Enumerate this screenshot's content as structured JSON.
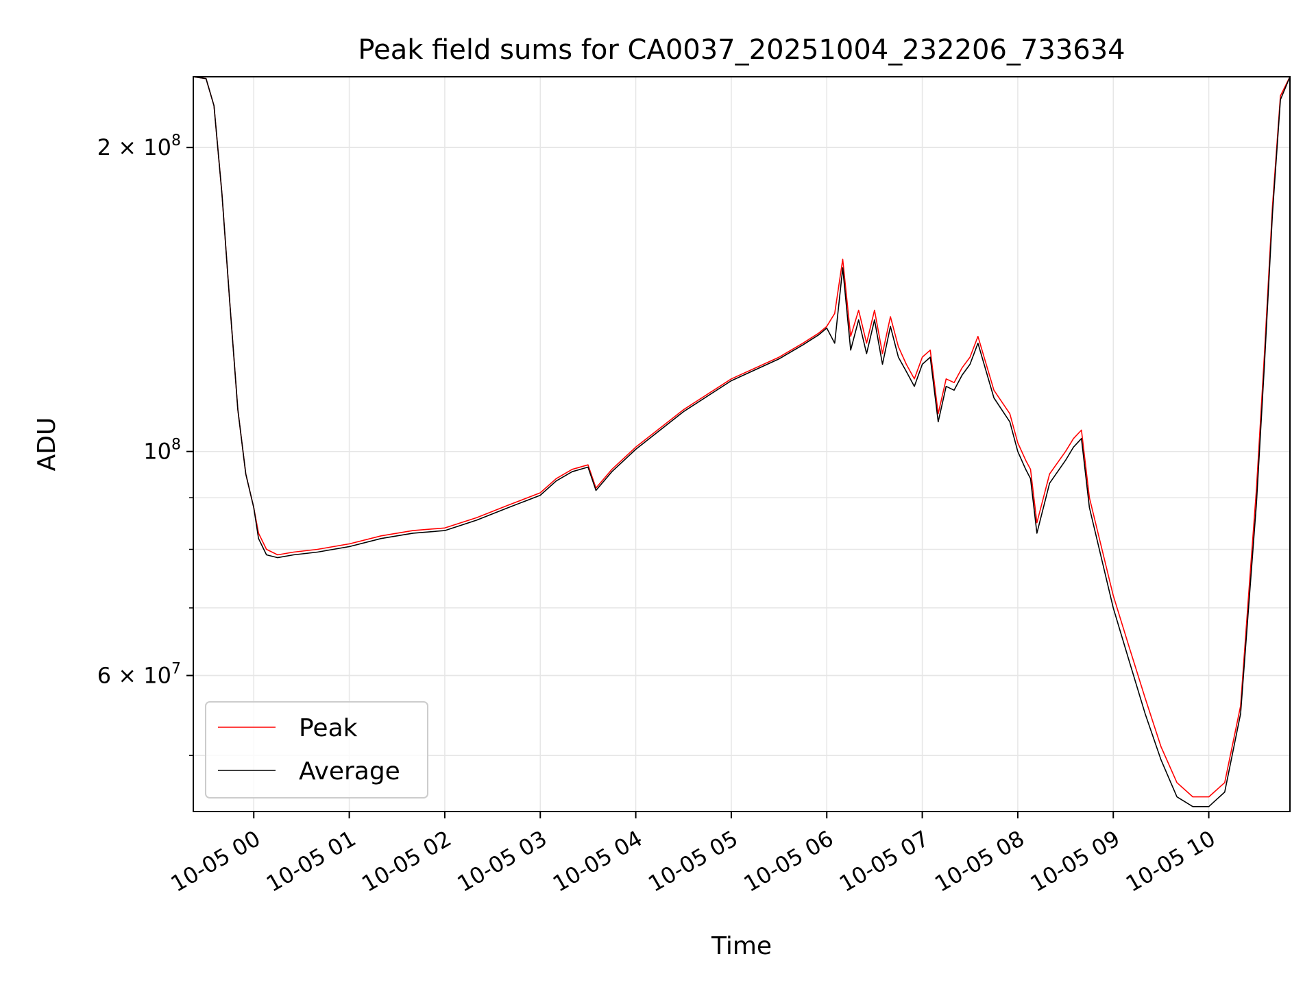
{
  "chart_data": {
    "type": "line",
    "title": "Peak field sums for CA0037_20251004_232206_733634",
    "xlabel": "Time",
    "ylabel": "ADU",
    "yscale": "log",
    "grid": true,
    "legend_position": "lower-left",
    "xlim": [
      "2025-10-04 23:22",
      "2025-10-05 10:51"
    ],
    "ylim": [
      44000000,
      235000000
    ],
    "x_ticks": [
      "10-05 00",
      "10-05 01",
      "10-05 02",
      "10-05 03",
      "10-05 04",
      "10-05 05",
      "10-05 06",
      "10-05 07",
      "10-05 08",
      "10-05 09",
      "10-05 10"
    ],
    "y_major_ticks": [
      {
        "value": 60000000,
        "base": "6 × 10",
        "exp": "7"
      },
      {
        "value": 100000000,
        "base": "10",
        "exp": "8"
      },
      {
        "value": 200000000,
        "base": "2 × 10",
        "exp": "8"
      }
    ],
    "y_minor_tick_values": [
      50000000,
      60000000,
      70000000,
      80000000,
      90000000,
      200000000
    ],
    "series": [
      {
        "name": "Peak",
        "color": "#ff0000",
        "x": [
          "2025-10-04 23:22",
          "2025-10-04 23:30",
          "2025-10-04 23:35",
          "2025-10-04 23:40",
          "2025-10-04 23:45",
          "2025-10-04 23:50",
          "2025-10-04 23:55",
          "2025-10-05 00:00",
          "2025-10-05 00:03",
          "2025-10-05 00:08",
          "2025-10-05 00:15",
          "2025-10-05 00:25",
          "2025-10-05 00:40",
          "2025-10-05 01:00",
          "2025-10-05 01:20",
          "2025-10-05 01:40",
          "2025-10-05 02:00",
          "2025-10-05 02:20",
          "2025-10-05 02:40",
          "2025-10-05 03:00",
          "2025-10-05 03:10",
          "2025-10-05 03:20",
          "2025-10-05 03:30",
          "2025-10-05 03:35",
          "2025-10-05 03:45",
          "2025-10-05 04:00",
          "2025-10-05 04:30",
          "2025-10-05 05:00",
          "2025-10-05 05:30",
          "2025-10-05 05:45",
          "2025-10-05 05:55",
          "2025-10-05 06:00",
          "2025-10-05 06:05",
          "2025-10-05 06:10",
          "2025-10-05 06:15",
          "2025-10-05 06:20",
          "2025-10-05 06:25",
          "2025-10-05 06:30",
          "2025-10-05 06:35",
          "2025-10-05 06:40",
          "2025-10-05 06:45",
          "2025-10-05 06:50",
          "2025-10-05 06:55",
          "2025-10-05 07:00",
          "2025-10-05 07:05",
          "2025-10-05 07:10",
          "2025-10-05 07:15",
          "2025-10-05 07:20",
          "2025-10-05 07:25",
          "2025-10-05 07:30",
          "2025-10-05 07:35",
          "2025-10-05 07:45",
          "2025-10-05 07:55",
          "2025-10-05 08:00",
          "2025-10-05 08:05",
          "2025-10-05 08:08",
          "2025-10-05 08:12",
          "2025-10-05 08:20",
          "2025-10-05 08:30",
          "2025-10-05 08:35",
          "2025-10-05 08:40",
          "2025-10-05 08:45",
          "2025-10-05 09:00",
          "2025-10-05 09:10",
          "2025-10-05 09:20",
          "2025-10-05 09:30",
          "2025-10-05 09:40",
          "2025-10-05 09:50",
          "2025-10-05 10:00",
          "2025-10-05 10:10",
          "2025-10-05 10:20",
          "2025-10-05 10:25",
          "2025-10-05 10:30",
          "2025-10-05 10:35",
          "2025-10-05 10:40",
          "2025-10-05 10:45",
          "2025-10-05 10:51"
        ],
        "y": [
          235000000,
          234000000,
          220000000,
          180000000,
          140000000,
          110000000,
          95000000,
          88000000,
          83000000,
          80000000,
          79000000,
          79500000,
          80000000,
          81000000,
          82500000,
          83500000,
          84000000,
          86000000,
          88500000,
          91000000,
          94000000,
          96000000,
          97000000,
          92000000,
          96000000,
          101000000,
          110000000,
          118000000,
          124000000,
          128000000,
          131000000,
          133000000,
          137000000,
          155000000,
          130000000,
          138000000,
          128000000,
          138000000,
          125000000,
          136000000,
          127000000,
          122000000,
          118000000,
          124000000,
          126000000,
          109000000,
          118000000,
          117000000,
          121000000,
          124000000,
          130000000,
          115000000,
          109000000,
          102000000,
          98000000,
          96000000,
          85000000,
          95000000,
          100000000,
          103000000,
          105000000,
          90000000,
          72000000,
          64000000,
          57000000,
          51000000,
          47000000,
          45500000,
          45500000,
          47000000,
          56000000,
          72000000,
          92000000,
          125000000,
          175000000,
          225000000,
          235000000
        ]
      },
      {
        "name": "Average",
        "color": "#000000",
        "x": [
          "2025-10-04 23:22",
          "2025-10-04 23:30",
          "2025-10-04 23:35",
          "2025-10-04 23:40",
          "2025-10-04 23:45",
          "2025-10-04 23:50",
          "2025-10-04 23:55",
          "2025-10-05 00:00",
          "2025-10-05 00:03",
          "2025-10-05 00:08",
          "2025-10-05 00:15",
          "2025-10-05 00:25",
          "2025-10-05 00:40",
          "2025-10-05 01:00",
          "2025-10-05 01:20",
          "2025-10-05 01:40",
          "2025-10-05 02:00",
          "2025-10-05 02:20",
          "2025-10-05 02:40",
          "2025-10-05 03:00",
          "2025-10-05 03:10",
          "2025-10-05 03:20",
          "2025-10-05 03:30",
          "2025-10-05 03:35",
          "2025-10-05 03:45",
          "2025-10-05 04:00",
          "2025-10-05 04:30",
          "2025-10-05 05:00",
          "2025-10-05 05:30",
          "2025-10-05 05:45",
          "2025-10-05 05:55",
          "2025-10-05 06:00",
          "2025-10-05 06:05",
          "2025-10-05 06:10",
          "2025-10-05 06:15",
          "2025-10-05 06:20",
          "2025-10-05 06:25",
          "2025-10-05 06:30",
          "2025-10-05 06:35",
          "2025-10-05 06:40",
          "2025-10-05 06:45",
          "2025-10-05 06:50",
          "2025-10-05 06:55",
          "2025-10-05 07:00",
          "2025-10-05 07:05",
          "2025-10-05 07:10",
          "2025-10-05 07:15",
          "2025-10-05 07:20",
          "2025-10-05 07:25",
          "2025-10-05 07:30",
          "2025-10-05 07:35",
          "2025-10-05 07:45",
          "2025-10-05 07:55",
          "2025-10-05 08:00",
          "2025-10-05 08:05",
          "2025-10-05 08:08",
          "2025-10-05 08:12",
          "2025-10-05 08:20",
          "2025-10-05 08:30",
          "2025-10-05 08:35",
          "2025-10-05 08:40",
          "2025-10-05 08:45",
          "2025-10-05 09:00",
          "2025-10-05 09:10",
          "2025-10-05 09:20",
          "2025-10-05 09:30",
          "2025-10-05 09:40",
          "2025-10-05 09:50",
          "2025-10-05 10:00",
          "2025-10-05 10:10",
          "2025-10-05 10:20",
          "2025-10-05 10:25",
          "2025-10-05 10:30",
          "2025-10-05 10:35",
          "2025-10-05 10:40",
          "2025-10-05 10:45",
          "2025-10-05 10:51"
        ],
        "y": [
          235000000,
          234000000,
          220000000,
          180000000,
          140000000,
          110000000,
          95000000,
          88000000,
          82000000,
          79000000,
          78500000,
          79000000,
          79500000,
          80500000,
          82000000,
          83000000,
          83500000,
          85500000,
          88000000,
          90500000,
          93500000,
          95500000,
          96500000,
          91500000,
          95500000,
          100500000,
          109500000,
          117500000,
          123500000,
          127500000,
          130500000,
          132500000,
          128000000,
          152000000,
          126000000,
          135000000,
          125000000,
          135000000,
          122000000,
          133000000,
          124000000,
          120000000,
          116000000,
          122000000,
          124000000,
          107000000,
          116000000,
          115000000,
          119000000,
          122000000,
          128000000,
          113000000,
          107000000,
          100000000,
          96000000,
          94000000,
          83000000,
          93000000,
          98000000,
          101000000,
          103000000,
          88000000,
          70000000,
          62000000,
          55000000,
          49500000,
          45500000,
          44500000,
          44500000,
          46000000,
          55000000,
          70000000,
          89000000,
          122000000,
          172000000,
          223000000,
          235000000
        ]
      }
    ]
  }
}
